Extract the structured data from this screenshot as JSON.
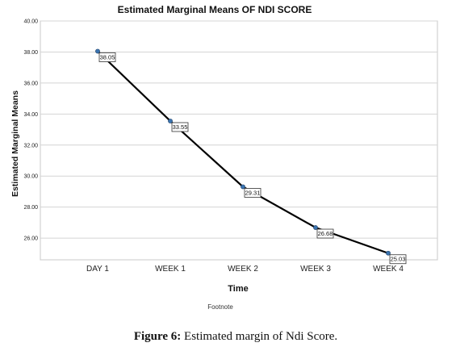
{
  "chart_data": {
    "type": "line",
    "title": "Estimated Marginal Means OF NDI SCORE",
    "xlabel": "Time",
    "ylabel": "Estimated Marginal Means",
    "categories": [
      "DAY 1",
      "WEEK 1",
      "WEEK 2",
      "WEEK 3",
      "WEEK 4"
    ],
    "series": [
      {
        "values": [
          38.05,
          33.55,
          29.31,
          26.68,
          25.03
        ],
        "data_labels": [
          "38.05",
          "33.55",
          "29.31",
          "26.68",
          "25.03"
        ]
      }
    ],
    "ylim": [
      24.6,
      40.0
    ],
    "yticks": [
      "40.00",
      "38.00",
      "36.00",
      "34.00",
      "32.00",
      "30.00",
      "28.00",
      "26.00"
    ],
    "ytick_values": [
      40,
      38,
      36,
      34,
      32,
      30,
      28,
      26
    ],
    "grid": "horizontal",
    "line_color": "#000000",
    "marker_color": "#3b74b0"
  },
  "footnote": "Footnote",
  "caption": {
    "label": "Figure 6:",
    "text": " Estimated margin of Ndi Score."
  }
}
